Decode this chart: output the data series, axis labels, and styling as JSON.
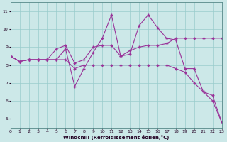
{
  "xlabel": "Windchill (Refroidissement éolien,°C)",
  "xlim": [
    0,
    23
  ],
  "ylim": [
    4.5,
    11.5
  ],
  "yticks": [
    5,
    6,
    7,
    8,
    9,
    10,
    11
  ],
  "xticks": [
    0,
    1,
    2,
    3,
    4,
    5,
    6,
    7,
    8,
    9,
    10,
    11,
    12,
    13,
    14,
    15,
    16,
    17,
    18,
    19,
    20,
    21,
    22,
    23
  ],
  "bg_color": "#cce8e8",
  "grid_color": "#99cccc",
  "line_color": "#993399",
  "line1_y": [
    8.5,
    8.2,
    8.3,
    8.3,
    8.3,
    8.3,
    8.9,
    6.8,
    7.8,
    8.7,
    9.5,
    10.8,
    8.5,
    8.6,
    10.2,
    10.8,
    10.1,
    9.5,
    9.4,
    7.8,
    7.8,
    6.5,
    6.3,
    4.8
  ],
  "line2_y": [
    8.5,
    8.2,
    8.3,
    8.3,
    8.3,
    8.9,
    9.1,
    8.1,
    8.3,
    9.0,
    9.1,
    9.1,
    8.5,
    8.8,
    9.0,
    9.1,
    9.1,
    9.2,
    9.5,
    9.5,
    9.5,
    9.5,
    9.5,
    9.5
  ],
  "line3_y": [
    8.5,
    8.2,
    8.3,
    8.3,
    8.3,
    8.3,
    8.3,
    7.8,
    8.0,
    8.0,
    8.0,
    8.0,
    8.0,
    8.0,
    8.0,
    8.0,
    8.0,
    8.0,
    7.8,
    7.6,
    7.0,
    6.5,
    6.0,
    4.8
  ]
}
